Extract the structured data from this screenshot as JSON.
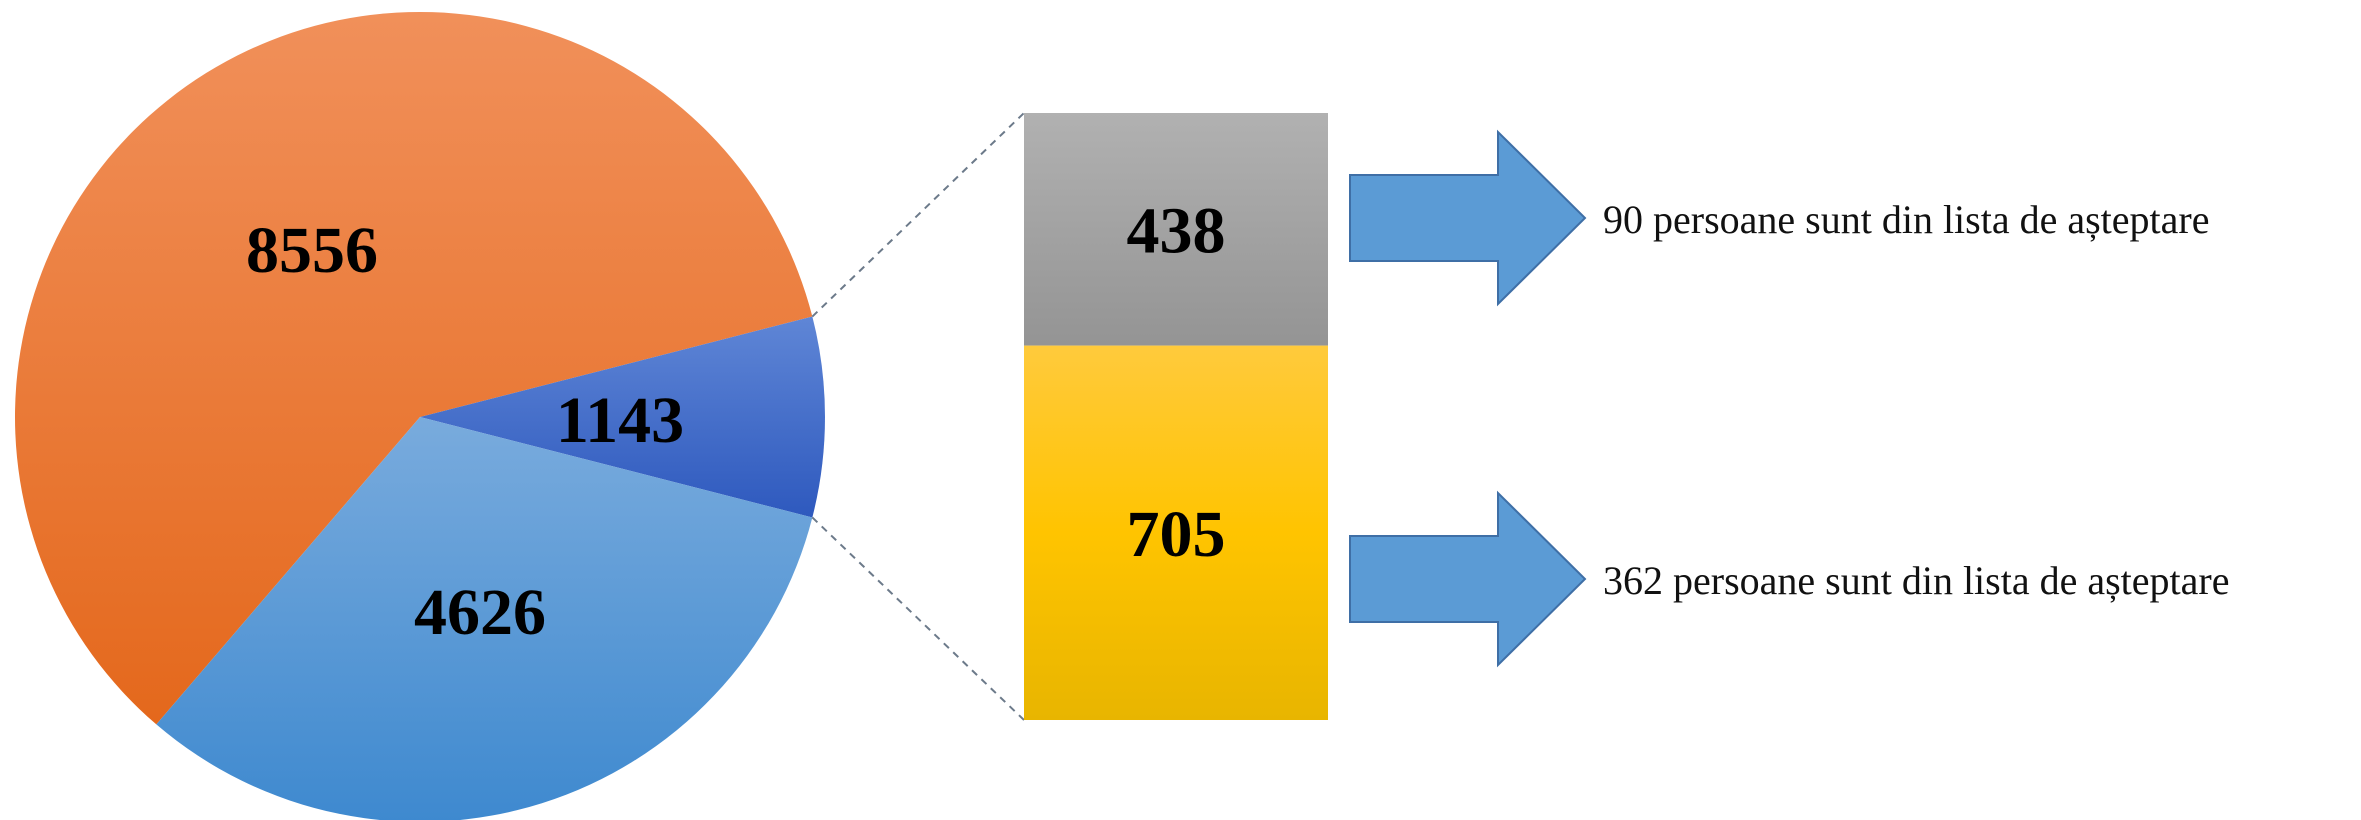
{
  "chart_data": {
    "type": "bar-of-pie",
    "pie": {
      "slices": [
        {
          "value": 8556,
          "label": "8556",
          "color": "#EE7A30"
        },
        {
          "value": 1143,
          "label": "1143",
          "color": "#4472C4"
        },
        {
          "value": 4626,
          "label": "4626",
          "color": "#5B9BD5"
        }
      ]
    },
    "breakdown_bar": {
      "of_slice_value": 1143,
      "segments": [
        {
          "value": 438,
          "label": "438",
          "color": "#A5A5A5"
        },
        {
          "value": 705,
          "label": "705",
          "color": "#FFC000"
        }
      ]
    },
    "annotations": [
      {
        "text": "90 persoane sunt din lista de așteptare",
        "segment": "438"
      },
      {
        "text": "362 persoane sunt din lista de așteptare",
        "segment": "705"
      }
    ],
    "arrow_color": "#5B9BD5",
    "title": "",
    "legend": "none"
  }
}
